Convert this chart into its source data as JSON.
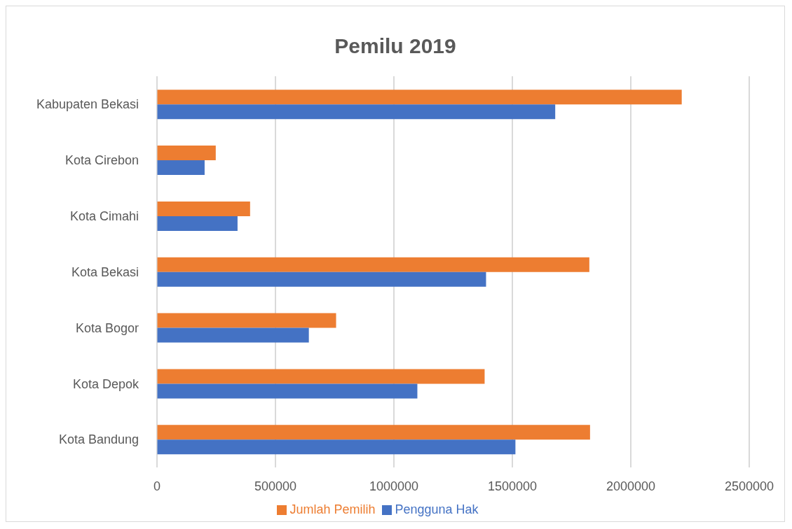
{
  "chart_data": {
    "type": "bar",
    "title": "Pemilu 2019",
    "orientation": "horizontal",
    "categories": [
      "Kabupaten Bekasi",
      "Kota Cirebon",
      "Kota Cimahi",
      "Kota Bekasi",
      "Kota Bogor",
      "Kota Depok",
      "Kota Bandung"
    ],
    "series": [
      {
        "name": "Jumlah Pemilih",
        "color": "#ed7d31",
        "values": [
          2215000,
          248000,
          393000,
          1825000,
          756000,
          1383000,
          1828000
        ]
      },
      {
        "name": "Pengguna Hak",
        "color": "#4472c4",
        "values": [
          1681000,
          201000,
          340000,
          1389000,
          641000,
          1099000,
          1513000
        ]
      }
    ],
    "xlim": [
      0,
      2500000
    ],
    "xticks": [
      0,
      500000,
      1000000,
      1500000,
      2000000,
      2500000
    ],
    "grid": "x",
    "legend": "bottom"
  }
}
